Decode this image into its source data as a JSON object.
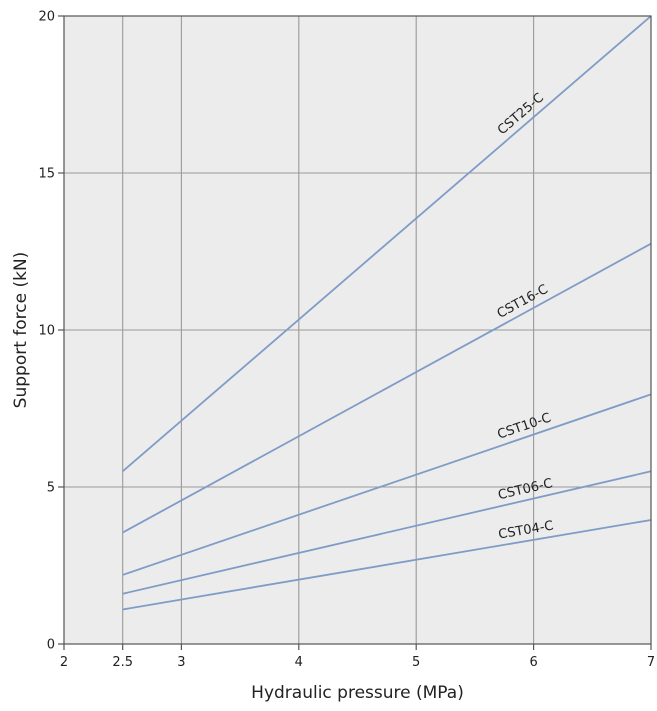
{
  "chart_data": {
    "type": "line",
    "title": "",
    "xlabel": "Hydraulic pressure (MPa)",
    "ylabel": "Support force (kN)",
    "xlim": [
      2,
      7
    ],
    "ylim": [
      0,
      20
    ],
    "xticks": [
      2,
      2.5,
      3,
      4,
      5,
      6,
      7
    ],
    "xtick_labels": [
      "2",
      "2.5",
      "3",
      "4",
      "5",
      "6",
      "7"
    ],
    "yticks": [
      0,
      5,
      10,
      15,
      20
    ],
    "ytick_labels": [
      "0",
      "5",
      "10",
      "15",
      "20"
    ],
    "grid": true,
    "legend": "none (series labeled inline along lines)",
    "colors": {
      "background": "#ececec",
      "grid": "#9a9a9a",
      "line": "#7f9cc7",
      "axis": "#555555"
    },
    "series": [
      {
        "name": "CST25-C",
        "x": [
          2.5,
          7
        ],
        "y": [
          5.5,
          20
        ],
        "label_x": 5.95
      },
      {
        "name": "CST16-C",
        "x": [
          2.5,
          7
        ],
        "y": [
          3.55,
          12.75
        ],
        "label_x": 5.95
      },
      {
        "name": "CST10-C",
        "x": [
          2.5,
          7
        ],
        "y": [
          2.2,
          7.95
        ],
        "label_x": 5.95
      },
      {
        "name": "CST06-C",
        "x": [
          2.5,
          7
        ],
        "y": [
          1.6,
          5.5
        ],
        "label_x": 5.95
      },
      {
        "name": "CST04-C",
        "x": [
          2.5,
          7
        ],
        "y": [
          1.1,
          3.95
        ],
        "label_x": 5.95
      }
    ]
  }
}
